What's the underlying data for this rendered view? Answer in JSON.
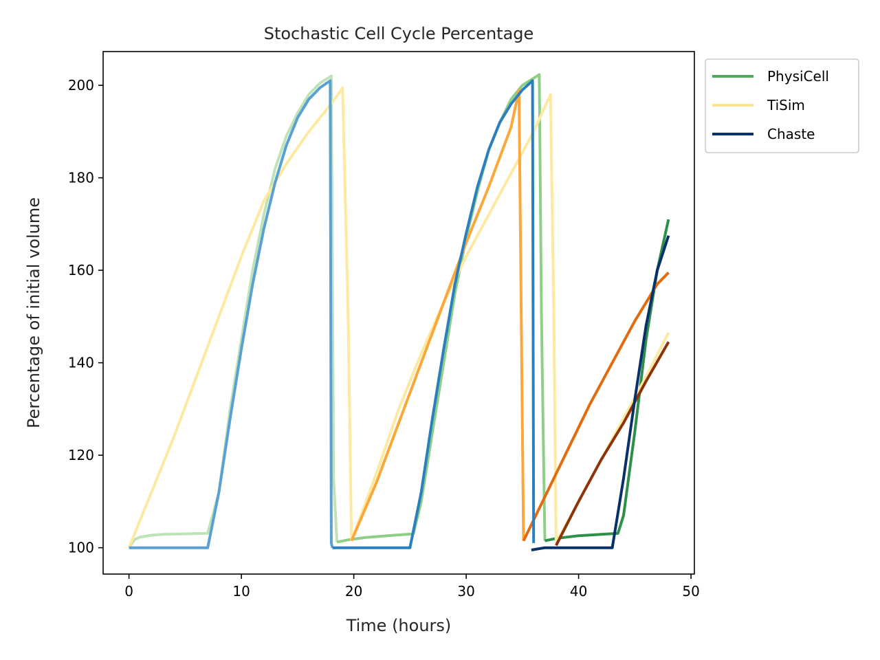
{
  "chart_data": {
    "type": "line",
    "title": "Stochastic Cell Cycle Percentage",
    "xlabel": "Time (hours)",
    "ylabel": "Percentage of initial volume",
    "xlim": [
      -2.3,
      50.3
    ],
    "ylim": [
      94.3,
      207.3
    ],
    "xticks": [
      0,
      10,
      20,
      30,
      40,
      50
    ],
    "yticks": [
      100,
      120,
      140,
      160,
      180,
      200
    ],
    "grid": false,
    "legend_position": "outside-top-right",
    "legend": [
      {
        "name": "PhysiCell",
        "color": "#4aab5b"
      },
      {
        "name": "TiSim",
        "color": "#fde58f"
      },
      {
        "name": "Chaste",
        "color": "#08306b"
      }
    ],
    "series": [
      {
        "group": "PhysiCell",
        "color": "#bde3b7",
        "points": [
          [
            0,
            100
          ],
          [
            0.5,
            101.8
          ],
          [
            1,
            102.3
          ],
          [
            2,
            102.7
          ],
          [
            3,
            102.9
          ],
          [
            5,
            103
          ],
          [
            7,
            103.1
          ],
          [
            8,
            112
          ],
          [
            9,
            130
          ],
          [
            10,
            145
          ],
          [
            11,
            160
          ],
          [
            12,
            172
          ],
          [
            13,
            182
          ],
          [
            14,
            189
          ],
          [
            15,
            194
          ],
          [
            16,
            198
          ],
          [
            17,
            200.5
          ],
          [
            18,
            202
          ],
          [
            18.2,
            115
          ],
          [
            18.5,
            101.2
          ]
        ]
      },
      {
        "group": "PhysiCell",
        "color": "#8ecf88",
        "points": [
          [
            18.5,
            101.2
          ],
          [
            19.5,
            101.7
          ],
          [
            21,
            102.2
          ],
          [
            23,
            102.6
          ],
          [
            25.3,
            103
          ],
          [
            26,
            110
          ],
          [
            27,
            125
          ],
          [
            28,
            140
          ],
          [
            29,
            155
          ],
          [
            30,
            167
          ],
          [
            31,
            177
          ],
          [
            32,
            186
          ],
          [
            33,
            192
          ],
          [
            34,
            197
          ],
          [
            35,
            200
          ],
          [
            36.5,
            202.3
          ],
          [
            36.7,
            150
          ],
          [
            37,
            101.5
          ]
        ]
      },
      {
        "group": "PhysiCell",
        "color": "#2d8f48",
        "points": [
          [
            37,
            101.5
          ],
          [
            38,
            102
          ],
          [
            40,
            102.6
          ],
          [
            42,
            102.9
          ],
          [
            43.5,
            103.1
          ],
          [
            44,
            107
          ],
          [
            45,
            125
          ],
          [
            46,
            145
          ],
          [
            47,
            160
          ],
          [
            48,
            171
          ]
        ]
      },
      {
        "group": "TiSim",
        "color": "#fde9a2",
        "points": [
          [
            0,
            100
          ],
          [
            2,
            112
          ],
          [
            4,
            124
          ],
          [
            6,
            137
          ],
          [
            8,
            150
          ],
          [
            10,
            163
          ],
          [
            12,
            175
          ],
          [
            14,
            183
          ],
          [
            16,
            190
          ],
          [
            18,
            196
          ],
          [
            19,
            199.5
          ],
          [
            19.5,
            150
          ],
          [
            19.8,
            101.5
          ]
        ]
      },
      {
        "group": "TiSim",
        "color": "#fde9a2",
        "points": [
          [
            19.8,
            101.5
          ],
          [
            22,
            116
          ],
          [
            24,
            130
          ],
          [
            26,
            142
          ],
          [
            28,
            153
          ],
          [
            30,
            163
          ],
          [
            32,
            172
          ],
          [
            34,
            181
          ],
          [
            36,
            190
          ],
          [
            37.5,
            198
          ],
          [
            37.8,
            150
          ],
          [
            38,
            101
          ]
        ]
      },
      {
        "group": "TiSim",
        "color": "#fde9a2",
        "points": [
          [
            38,
            101
          ],
          [
            40,
            110
          ],
          [
            42,
            119
          ],
          [
            44,
            128
          ],
          [
            46,
            137
          ],
          [
            48,
            146.5
          ]
        ]
      },
      {
        "group": "orange",
        "color": "#fba73a",
        "points": [
          [
            19.8,
            101.5
          ],
          [
            22,
            114
          ],
          [
            24,
            127
          ],
          [
            26,
            140
          ],
          [
            28,
            153
          ],
          [
            30,
            166
          ],
          [
            32,
            178
          ],
          [
            34,
            191
          ],
          [
            34.7,
            199
          ],
          [
            34.9,
            150
          ],
          [
            35.1,
            101.5
          ]
        ]
      },
      {
        "group": "orange",
        "color": "#e36b0f",
        "points": [
          [
            35.1,
            101.5
          ],
          [
            37,
            111
          ],
          [
            39,
            121
          ],
          [
            41,
            131
          ],
          [
            43,
            140
          ],
          [
            45,
            149
          ],
          [
            47,
            157
          ],
          [
            48,
            159.5
          ]
        ]
      },
      {
        "group": "orange",
        "color": "#8e3208",
        "points": [
          [
            38,
            100.5
          ],
          [
            40,
            110
          ],
          [
            42,
            119
          ],
          [
            44,
            127
          ],
          [
            46,
            136
          ],
          [
            48,
            144.5
          ]
        ]
      },
      {
        "group": "Chaste",
        "color": "#5aa0d2",
        "points": [
          [
            0,
            100
          ],
          [
            3,
            100
          ],
          [
            7,
            100
          ],
          [
            8,
            112
          ],
          [
            9,
            128
          ],
          [
            10,
            143
          ],
          [
            11,
            157
          ],
          [
            12,
            169
          ],
          [
            13,
            179
          ],
          [
            14,
            187
          ],
          [
            15,
            193
          ],
          [
            16,
            197
          ],
          [
            17,
            199.5
          ],
          [
            17.9,
            201
          ],
          [
            18,
            101
          ],
          [
            18.1,
            100
          ]
        ]
      },
      {
        "group": "Chaste",
        "color": "#2c7fbf",
        "points": [
          [
            18.1,
            100
          ],
          [
            21,
            100
          ],
          [
            25,
            100
          ],
          [
            26,
            112
          ],
          [
            27,
            128
          ],
          [
            28,
            143
          ],
          [
            29,
            157
          ],
          [
            30,
            168
          ],
          [
            31,
            178
          ],
          [
            32,
            186
          ],
          [
            33,
            192
          ],
          [
            34,
            196
          ],
          [
            35,
            199
          ],
          [
            35.9,
            201
          ],
          [
            36,
            101
          ]
        ]
      },
      {
        "group": "Chaste",
        "color": "#08306b",
        "points": [
          [
            35.8,
            99.5
          ],
          [
            37,
            100
          ],
          [
            40,
            100
          ],
          [
            43,
            100
          ],
          [
            44,
            115
          ],
          [
            45,
            132
          ],
          [
            46,
            148
          ],
          [
            47,
            160
          ],
          [
            48,
            167.5
          ]
        ]
      }
    ]
  }
}
